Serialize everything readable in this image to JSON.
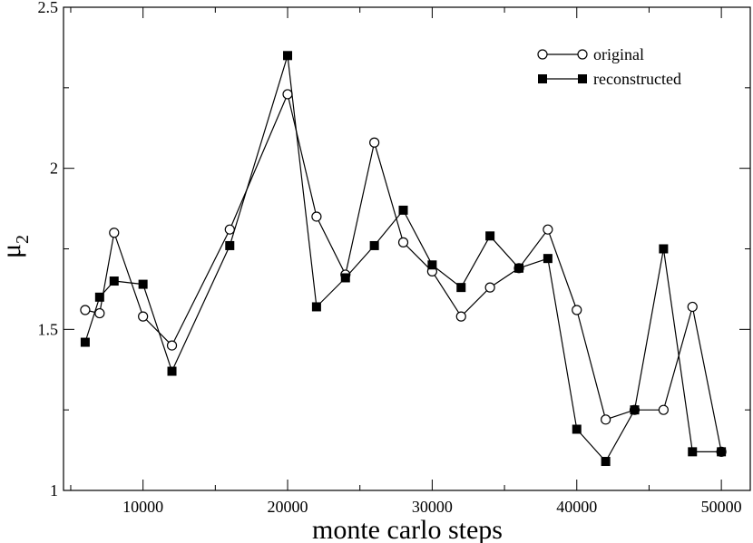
{
  "chart_data": {
    "type": "line",
    "title": "",
    "xlabel": "monte carlo steps",
    "ylabel_main": "μ",
    "ylabel_sub": "2",
    "xlim": [
      4500,
      52000
    ],
    "ylim": [
      1,
      2.5
    ],
    "grid": false,
    "legend_position": "top-right",
    "x_ticks": [
      10000,
      20000,
      30000,
      40000,
      50000
    ],
    "x_tick_labels": [
      "10000",
      "20000",
      "30000",
      "40000",
      "50000"
    ],
    "y_ticks": [
      1,
      1.5,
      2,
      2.5
    ],
    "y_tick_labels": [
      "1",
      "1.5",
      "2",
      "2.5"
    ],
    "x_minor_step": 5000,
    "y_minor_step": 0.25,
    "series": [
      {
        "name": "original",
        "marker": "open-circle",
        "color": "#000000",
        "x": [
          6000,
          7000,
          8000,
          10000,
          12000,
          16000,
          20000,
          22000,
          24000,
          26000,
          28000,
          30000,
          32000,
          34000,
          36000,
          38000,
          40000,
          42000,
          44000,
          46000,
          48000,
          50000
        ],
        "y": [
          1.56,
          1.55,
          1.8,
          1.54,
          1.45,
          1.81,
          2.23,
          1.85,
          1.67,
          2.08,
          1.77,
          1.68,
          1.54,
          1.63,
          1.69,
          1.81,
          1.56,
          1.22,
          1.25,
          1.25,
          1.57,
          1.12
        ]
      },
      {
        "name": "reconstructed",
        "marker": "filled-square",
        "color": "#000000",
        "x": [
          6000,
          7000,
          8000,
          10000,
          12000,
          16000,
          20000,
          22000,
          24000,
          26000,
          28000,
          30000,
          32000,
          34000,
          36000,
          38000,
          40000,
          42000,
          44000,
          46000,
          48000,
          50000
        ],
        "y": [
          1.46,
          1.6,
          1.65,
          1.64,
          1.37,
          1.76,
          2.35,
          1.57,
          1.66,
          1.76,
          1.87,
          1.7,
          1.63,
          1.79,
          1.69,
          1.72,
          1.19,
          1.09,
          1.25,
          1.75,
          1.12,
          1.12
        ]
      }
    ]
  }
}
